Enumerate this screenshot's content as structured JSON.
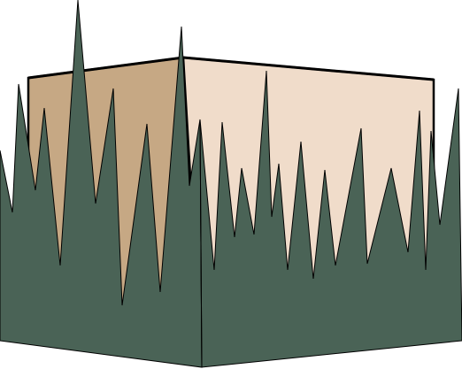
{
  "colors": {
    "background": "#ffffff",
    "box_left_face": "#c6a884",
    "box_right_face": "#f0dcca",
    "grass": "#4a6356",
    "outline": "#000000"
  }
}
